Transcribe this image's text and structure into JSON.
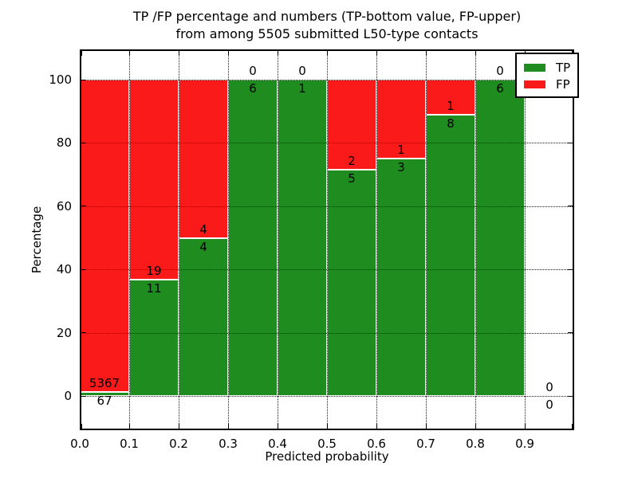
{
  "figure": {
    "background": "#ffffff",
    "text_color": "#000000"
  },
  "title": {
    "line1": "TP /FP percentage and numbers (TP-bottom value, FP-upper)",
    "line2": "from among 5505 submitted L50-type contacts"
  },
  "chart_data": {
    "type": "bar",
    "stacked": true,
    "orientation": "vertical",
    "title": "TP /FP percentage and numbers (TP-bottom value, FP-upper) from among 5505 submitted L50-type contacts",
    "xlabel": "Predicted probability",
    "ylabel": "Percentage",
    "xlim": [
      0.0,
      1.0
    ],
    "ylim": [
      -11,
      110
    ],
    "x_tick_labels": [
      "0.0",
      "0.1",
      "0.2",
      "0.3",
      "0.4",
      "0.5",
      "0.6",
      "0.7",
      "0.8",
      "0.9"
    ],
    "y_tick_values": [
      0,
      20,
      40,
      60,
      80,
      100
    ],
    "y_tick_labels": [
      "0",
      "20",
      "40",
      "60",
      "80",
      "100"
    ],
    "grid": "dotted",
    "total_contacts": 5505,
    "legend": {
      "position": "upper-right",
      "entries": [
        {
          "label": "TP",
          "color": "#1e8c1e"
        },
        {
          "label": "FP",
          "color": "#fb1a1a"
        }
      ]
    },
    "bins": [
      {
        "x_start": 0.0,
        "x_end": 0.1,
        "tp": 67,
        "fp": 5367,
        "tp_pct": 1.23,
        "fp_pct": 98.77
      },
      {
        "x_start": 0.1,
        "x_end": 0.2,
        "tp": 11,
        "fp": 19,
        "tp_pct": 36.67,
        "fp_pct": 63.33
      },
      {
        "x_start": 0.2,
        "x_end": 0.3,
        "tp": 4,
        "fp": 4,
        "tp_pct": 50.0,
        "fp_pct": 50.0
      },
      {
        "x_start": 0.3,
        "x_end": 0.4,
        "tp": 6,
        "fp": 0,
        "tp_pct": 100.0,
        "fp_pct": 0.0
      },
      {
        "x_start": 0.4,
        "x_end": 0.5,
        "tp": 1,
        "fp": 0,
        "tp_pct": 100.0,
        "fp_pct": 0.0
      },
      {
        "x_start": 0.5,
        "x_end": 0.6,
        "tp": 5,
        "fp": 2,
        "tp_pct": 71.43,
        "fp_pct": 28.57
      },
      {
        "x_start": 0.6,
        "x_end": 0.7,
        "tp": 3,
        "fp": 1,
        "tp_pct": 75.0,
        "fp_pct": 25.0
      },
      {
        "x_start": 0.7,
        "x_end": 0.8,
        "tp": 8,
        "fp": 1,
        "tp_pct": 88.89,
        "fp_pct": 11.11
      },
      {
        "x_start": 0.8,
        "x_end": 0.9,
        "tp": 6,
        "fp": 0,
        "tp_pct": 100.0,
        "fp_pct": 0.0
      },
      {
        "x_start": 0.9,
        "x_end": 1.0,
        "tp": 0,
        "fp": 0,
        "tp_pct": 0.0,
        "fp_pct": 0.0
      }
    ]
  }
}
